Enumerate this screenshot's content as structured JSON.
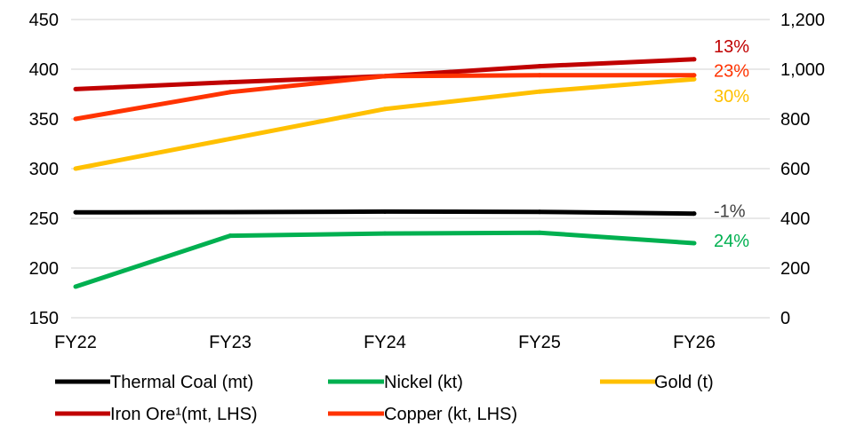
{
  "chart_data": {
    "type": "line",
    "categories": [
      "FY22",
      "FY23",
      "FY24",
      "FY25",
      "FY26"
    ],
    "y_left": {
      "min": 150,
      "max": 450,
      "ticks": [
        "450",
        "400",
        "350",
        "300",
        "250",
        "200",
        "150"
      ]
    },
    "y_right": {
      "min": 0,
      "max": 1200,
      "ticks": [
        "1,200",
        "1,000",
        "800",
        "600",
        "400",
        "200",
        "0"
      ]
    },
    "grid": true,
    "legend_position": "bottom",
    "series": [
      {
        "name": "Thermal Coal (mt)",
        "axis": "right",
        "color": "#000000",
        "values": [
          424,
          425,
          427,
          426,
          419
        ],
        "end_label": "-1%",
        "end_label_color": "#404040"
      },
      {
        "name": "Nickel (kt)",
        "axis": "right",
        "color": "#00B050",
        "values": [
          125,
          330,
          339,
          342,
          300
        ],
        "end_label": "24%",
        "end_label_color": "#00B050"
      },
      {
        "name": "Gold (t)",
        "axis": "right",
        "color": "#FFC000",
        "values": [
          600,
          720,
          840,
          910,
          960
        ],
        "end_label": "30%",
        "end_label_color": "#FFC000"
      },
      {
        "name": "Iron Ore¹(mt, LHS)",
        "axis": "left",
        "color": "#C00000",
        "values": [
          380,
          387,
          393,
          403,
          410
        ],
        "end_label": "13%",
        "end_label_color": "#C00000"
      },
      {
        "name": "Copper (kt, LHS)",
        "axis": "left",
        "color": "#FF3300",
        "values": [
          350,
          377,
          393,
          394,
          394
        ],
        "end_label": "23%",
        "end_label_color": "#FF3300"
      }
    ]
  }
}
